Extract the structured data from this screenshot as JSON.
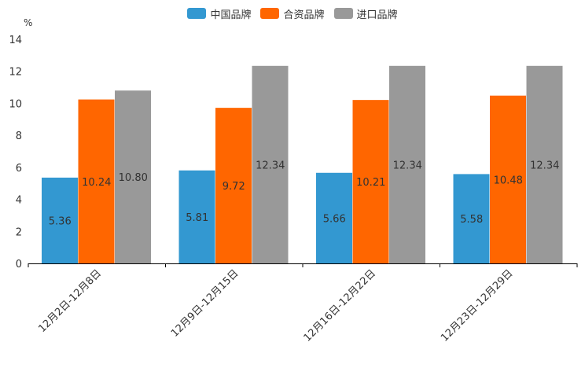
{
  "chart_data": {
    "type": "bar",
    "title": "",
    "ylabel": "%",
    "xlabel": "",
    "ylim": [
      0,
      14
    ],
    "yticks": [
      0,
      2,
      4,
      6,
      8,
      10,
      12,
      14
    ],
    "categories": [
      "12月2日-12月8日",
      "12月9日-12月15日",
      "12月16日-12月22日",
      "12月23日-12月29日"
    ],
    "series": [
      {
        "name": "中国品牌",
        "color": "#3398d1",
        "values": [
          5.36,
          5.81,
          5.66,
          5.58
        ],
        "labels": [
          "5.36",
          "5.81",
          "5.66",
          "5.58"
        ]
      },
      {
        "name": "合资品牌",
        "color": "#ff6600",
        "values": [
          10.24,
          9.72,
          10.21,
          10.48
        ],
        "labels": [
          "10.24",
          "9.72",
          "10.21",
          "10.48"
        ]
      },
      {
        "name": "进口品牌",
        "color": "#999999",
        "values": [
          10.8,
          12.34,
          12.34,
          12.34
        ],
        "labels": [
          "10.80",
          "12.34",
          "12.34",
          "12.34"
        ]
      }
    ],
    "legend_position": "top-center",
    "grid": false
  }
}
